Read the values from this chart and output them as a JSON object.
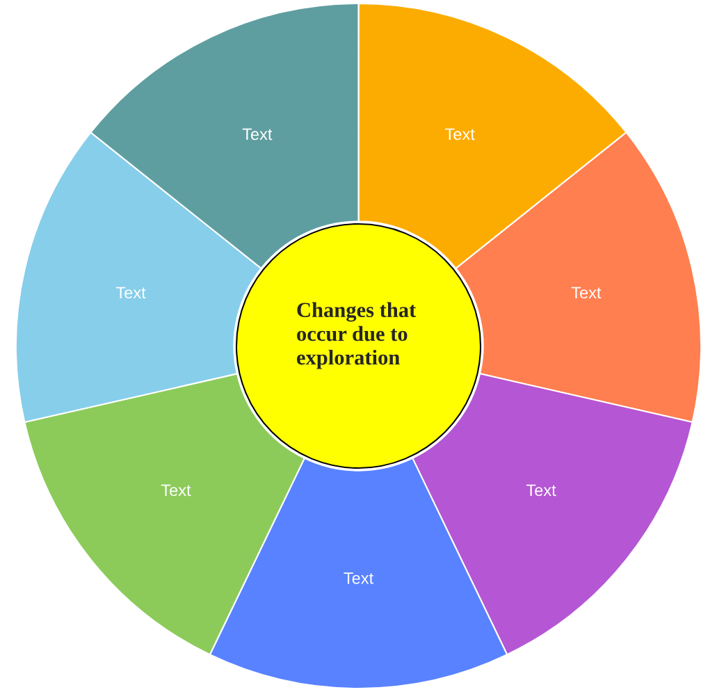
{
  "chart_data": {
    "type": "donut",
    "title": "Changes that\noccur due to\nexploration",
    "categories": [
      "Text",
      "Text",
      "Text",
      "Text",
      "Text",
      "Text",
      "Text"
    ],
    "values": [
      14.29,
      14.29,
      14.29,
      14.29,
      14.29,
      14.29,
      14.29
    ],
    "colors": [
      "#fcac00",
      "#ff7f50",
      "#b556d4",
      "#5882ff",
      "#8ccb5a",
      "#87ceeb",
      "#5f9ea0"
    ],
    "legend": false
  }
}
